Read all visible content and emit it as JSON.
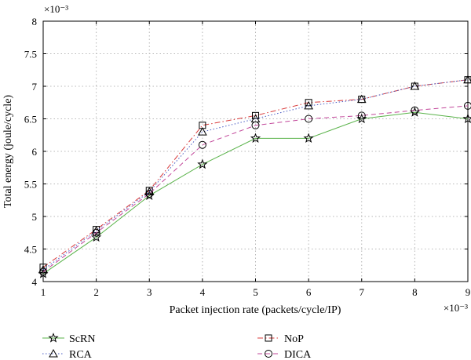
{
  "chart_data": {
    "type": "line",
    "xlabel": "Packet injection rate (packets/cycle/IP)",
    "ylabel": "Total energy (joule/cycle)",
    "x_multiplier": "×10⁻³",
    "y_multiplier": "×10⁻³",
    "x": [
      1,
      2,
      3,
      4,
      5,
      6,
      7,
      8,
      9
    ],
    "xlim": [
      1,
      9
    ],
    "ylim": [
      4,
      8
    ],
    "xticks": [
      "1",
      "2",
      "3",
      "4",
      "5",
      "6",
      "7",
      "8",
      "9"
    ],
    "yticks": [
      "4",
      "4.5",
      "5",
      "5.5",
      "6",
      "6.5",
      "7",
      "7.5",
      "8"
    ],
    "grid": true,
    "legend_position": "bottom",
    "series": [
      {
        "name": "ScRN",
        "color": "#5ab34a",
        "dash": "solid",
        "marker": "star",
        "values": [
          4.12,
          4.68,
          5.32,
          5.8,
          6.2,
          6.2,
          6.5,
          6.6,
          6.5
        ]
      },
      {
        "name": "NoP",
        "color": "#d93a3a",
        "dash": "dashdot",
        "marker": "square",
        "values": [
          4.22,
          4.8,
          5.4,
          6.4,
          6.55,
          6.75,
          6.8,
          7.0,
          7.1
        ]
      },
      {
        "name": "RCA",
        "color": "#4a5cc4",
        "dash": "dotted",
        "marker": "triangle",
        "values": [
          4.18,
          4.78,
          5.38,
          6.3,
          6.5,
          6.7,
          6.8,
          7.0,
          7.1
        ]
      },
      {
        "name": "DICA",
        "color": "#c2479a",
        "dash": "dashed",
        "marker": "circle",
        "values": [
          4.15,
          4.75,
          5.35,
          6.1,
          6.4,
          6.5,
          6.55,
          6.63,
          6.7
        ]
      }
    ]
  }
}
